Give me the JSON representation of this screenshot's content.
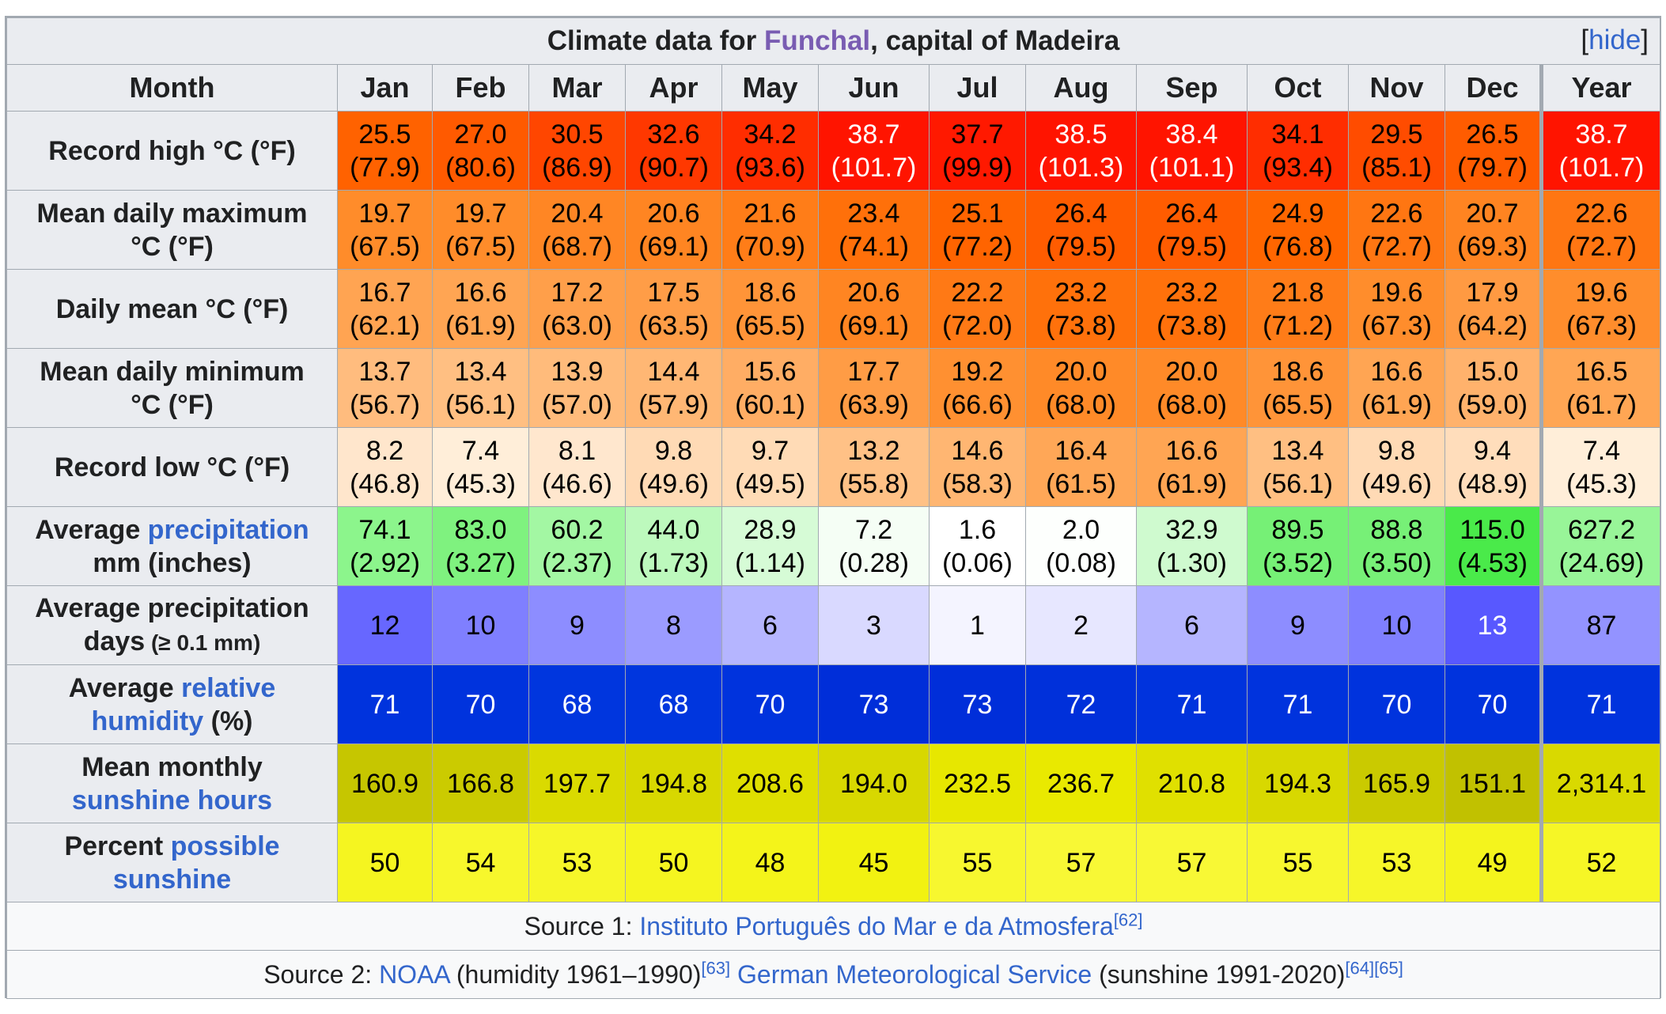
{
  "title": {
    "prefix": "Climate data for ",
    "place": "Funchal",
    "suffix": ", capital of Madeira",
    "hide": "[hide]"
  },
  "header": {
    "month_label": "Month",
    "months": [
      "Jan",
      "Feb",
      "Mar",
      "Apr",
      "May",
      "Jun",
      "Jul",
      "Aug",
      "Sep",
      "Oct",
      "Nov",
      "Dec",
      "Year"
    ]
  },
  "rows": [
    {
      "label_parts": [
        {
          "text": "Record high °C (°F)",
          "link": false
        }
      ],
      "cells": [
        {
          "l1": "25.5",
          "l2": "(77.9)",
          "bg": "#ff6200",
          "fg": "#000000"
        },
        {
          "l1": "27.0",
          "l2": "(80.6)",
          "bg": "#ff5a00",
          "fg": "#000000"
        },
        {
          "l1": "30.5",
          "l2": "(86.9)",
          "bg": "#ff4600",
          "fg": "#000000"
        },
        {
          "l1": "32.6",
          "l2": "(90.7)",
          "bg": "#ff3800",
          "fg": "#000000"
        },
        {
          "l1": "34.2",
          "l2": "(93.6)",
          "bg": "#ff2d00",
          "fg": "#000000"
        },
        {
          "l1": "38.7",
          "l2": "(101.7)",
          "bg": "#ff1400",
          "fg": "#ffffff"
        },
        {
          "l1": "37.7",
          "l2": "(99.9)",
          "bg": "#ff1900",
          "fg": "#000000"
        },
        {
          "l1": "38.5",
          "l2": "(101.3)",
          "bg": "#ff1400",
          "fg": "#ffffff"
        },
        {
          "l1": "38.4",
          "l2": "(101.1)",
          "bg": "#ff1400",
          "fg": "#ffffff"
        },
        {
          "l1": "34.1",
          "l2": "(93.4)",
          "bg": "#ff2d00",
          "fg": "#000000"
        },
        {
          "l1": "29.5",
          "l2": "(85.1)",
          "bg": "#ff4c00",
          "fg": "#000000"
        },
        {
          "l1": "26.5",
          "l2": "(79.7)",
          "bg": "#ff5c00",
          "fg": "#000000"
        },
        {
          "l1": "38.7",
          "l2": "(101.7)",
          "bg": "#ff1400",
          "fg": "#ffffff"
        }
      ]
    },
    {
      "label_parts": [
        {
          "text": "Mean daily maximum",
          "link": false
        },
        {
          "text": "°C (°F)",
          "link": false,
          "br": true
        }
      ],
      "cells": [
        {
          "l1": "19.7",
          "l2": "(67.5)",
          "bg": "#ff8c2a",
          "fg": "#000000"
        },
        {
          "l1": "19.7",
          "l2": "(67.5)",
          "bg": "#ff8c2a",
          "fg": "#000000"
        },
        {
          "l1": "20.4",
          "l2": "(68.7)",
          "bg": "#ff8624",
          "fg": "#000000"
        },
        {
          "l1": "20.6",
          "l2": "(69.1)",
          "bg": "#ff8522",
          "fg": "#000000"
        },
        {
          "l1": "21.6",
          "l2": "(70.9)",
          "bg": "#ff7d18",
          "fg": "#000000"
        },
        {
          "l1": "23.4",
          "l2": "(74.1)",
          "bg": "#ff700a",
          "fg": "#000000"
        },
        {
          "l1": "25.1",
          "l2": "(77.2)",
          "bg": "#ff6400",
          "fg": "#000000"
        },
        {
          "l1": "26.4",
          "l2": "(79.5)",
          "bg": "#ff5c00",
          "fg": "#000000"
        },
        {
          "l1": "26.4",
          "l2": "(79.5)",
          "bg": "#ff5c00",
          "fg": "#000000"
        },
        {
          "l1": "24.9",
          "l2": "(76.8)",
          "bg": "#ff6600",
          "fg": "#000000"
        },
        {
          "l1": "22.6",
          "l2": "(72.7)",
          "bg": "#ff7612",
          "fg": "#000000"
        },
        {
          "l1": "20.7",
          "l2": "(69.3)",
          "bg": "#ff8421",
          "fg": "#000000"
        },
        {
          "l1": "22.6",
          "l2": "(72.7)",
          "bg": "#ff7612",
          "fg": "#000000"
        }
      ]
    },
    {
      "label_parts": [
        {
          "text": "Daily mean °C (°F)",
          "link": false
        }
      ],
      "cells": [
        {
          "l1": "16.7",
          "l2": "(62.1)",
          "bg": "#ffa452",
          "fg": "#000000"
        },
        {
          "l1": "16.6",
          "l2": "(61.9)",
          "bg": "#ffa553",
          "fg": "#000000"
        },
        {
          "l1": "17.2",
          "l2": "(63.0)",
          "bg": "#ff9f4a",
          "fg": "#000000"
        },
        {
          "l1": "17.5",
          "l2": "(63.5)",
          "bg": "#ff9d47",
          "fg": "#000000"
        },
        {
          "l1": "18.6",
          "l2": "(65.5)",
          "bg": "#ff9438",
          "fg": "#000000"
        },
        {
          "l1": "20.6",
          "l2": "(69.1)",
          "bg": "#ff8522",
          "fg": "#000000"
        },
        {
          "l1": "22.2",
          "l2": "(72.0)",
          "bg": "#ff7915",
          "fg": "#000000"
        },
        {
          "l1": "23.2",
          "l2": "(73.8)",
          "bg": "#ff710b",
          "fg": "#000000"
        },
        {
          "l1": "23.2",
          "l2": "(73.8)",
          "bg": "#ff710b",
          "fg": "#000000"
        },
        {
          "l1": "21.8",
          "l2": "(71.2)",
          "bg": "#ff7c18",
          "fg": "#000000"
        },
        {
          "l1": "19.6",
          "l2": "(67.3)",
          "bg": "#ff8d2c",
          "fg": "#000000"
        },
        {
          "l1": "17.9",
          "l2": "(64.2)",
          "bg": "#ff9a42",
          "fg": "#000000"
        },
        {
          "l1": "19.6",
          "l2": "(67.3)",
          "bg": "#ff8d2c",
          "fg": "#000000"
        }
      ]
    },
    {
      "label_parts": [
        {
          "text": "Mean daily minimum",
          "link": false
        },
        {
          "text": "°C (°F)",
          "link": false,
          "br": true
        }
      ],
      "cells": [
        {
          "l1": "13.7",
          "l2": "(56.7)",
          "bg": "#ffbc7e",
          "fg": "#000000"
        },
        {
          "l1": "13.4",
          "l2": "(56.1)",
          "bg": "#ffbf82",
          "fg": "#000000"
        },
        {
          "l1": "13.9",
          "l2": "(57.0)",
          "bg": "#ffbb7b",
          "fg": "#000000"
        },
        {
          "l1": "14.4",
          "l2": "(57.9)",
          "bg": "#ffb774",
          "fg": "#000000"
        },
        {
          "l1": "15.6",
          "l2": "(60.1)",
          "bg": "#ffad64",
          "fg": "#000000"
        },
        {
          "l1": "17.7",
          "l2": "(63.9)",
          "bg": "#ff9c45",
          "fg": "#000000"
        },
        {
          "l1": "19.2",
          "l2": "(66.6)",
          "bg": "#ff9031",
          "fg": "#000000"
        },
        {
          "l1": "20.0",
          "l2": "(68.0)",
          "bg": "#ff8a28",
          "fg": "#000000"
        },
        {
          "l1": "20.0",
          "l2": "(68.0)",
          "bg": "#ff8a28",
          "fg": "#000000"
        },
        {
          "l1": "18.6",
          "l2": "(65.5)",
          "bg": "#ff9438",
          "fg": "#000000"
        },
        {
          "l1": "16.6",
          "l2": "(61.9)",
          "bg": "#ffa553",
          "fg": "#000000"
        },
        {
          "l1": "15.0",
          "l2": "(59.0)",
          "bg": "#ffb26c",
          "fg": "#000000"
        },
        {
          "l1": "16.5",
          "l2": "(61.7)",
          "bg": "#ffa654",
          "fg": "#000000"
        }
      ]
    },
    {
      "label_parts": [
        {
          "text": "Record low °C (°F)",
          "link": false
        }
      ],
      "cells": [
        {
          "l1": "8.2",
          "l2": "(46.8)",
          "bg": "#ffe6cc",
          "fg": "#000000"
        },
        {
          "l1": "7.4",
          "l2": "(45.3)",
          "bg": "#ffeed9",
          "fg": "#000000"
        },
        {
          "l1": "8.1",
          "l2": "(46.6)",
          "bg": "#ffe7ce",
          "fg": "#000000"
        },
        {
          "l1": "9.8",
          "l2": "(49.6)",
          "bg": "#ffdab5",
          "fg": "#000000"
        },
        {
          "l1": "9.7",
          "l2": "(49.5)",
          "bg": "#ffdbb6",
          "fg": "#000000"
        },
        {
          "l1": "13.2",
          "l2": "(55.8)",
          "bg": "#ffc186",
          "fg": "#000000"
        },
        {
          "l1": "14.6",
          "l2": "(58.3)",
          "bg": "#ffb672",
          "fg": "#000000"
        },
        {
          "l1": "16.4",
          "l2": "(61.5)",
          "bg": "#ffa757",
          "fg": "#000000"
        },
        {
          "l1": "16.6",
          "l2": "(61.9)",
          "bg": "#ffa553",
          "fg": "#000000"
        },
        {
          "l1": "13.4",
          "l2": "(56.1)",
          "bg": "#ffbf82",
          "fg": "#000000"
        },
        {
          "l1": "9.8",
          "l2": "(49.6)",
          "bg": "#ffdab5",
          "fg": "#000000"
        },
        {
          "l1": "9.4",
          "l2": "(48.9)",
          "bg": "#ffddbb",
          "fg": "#000000"
        },
        {
          "l1": "7.4",
          "l2": "(45.3)",
          "bg": "#ffeed9",
          "fg": "#000000"
        }
      ]
    },
    {
      "label_parts": [
        {
          "text": "Average ",
          "link": false
        },
        {
          "text": "precipitation",
          "link": true
        },
        {
          "text": "mm (inches)",
          "link": false,
          "br": true
        }
      ],
      "cells": [
        {
          "l1": "74.1",
          "l2": "(2.92)",
          "bg": "#8cf58c",
          "fg": "#000000"
        },
        {
          "l1": "83.0",
          "l2": "(3.27)",
          "bg": "#7ff27f",
          "fg": "#000000"
        },
        {
          "l1": "60.2",
          "l2": "(2.37)",
          "bg": "#a3f7a3",
          "fg": "#000000"
        },
        {
          "l1": "44.0",
          "l2": "(1.73)",
          "bg": "#bdf9bd",
          "fg": "#000000"
        },
        {
          "l1": "28.9",
          "l2": "(1.14)",
          "bg": "#d6fbd6",
          "fg": "#000000"
        },
        {
          "l1": "7.2",
          "l2": "(0.28)",
          "bg": "#f5fef5",
          "fg": "#000000"
        },
        {
          "l1": "1.6",
          "l2": "(0.06)",
          "bg": "#ffffff",
          "fg": "#000000"
        },
        {
          "l1": "2.0",
          "l2": "(0.08)",
          "bg": "#fdfffd",
          "fg": "#000000"
        },
        {
          "l1": "32.9",
          "l2": "(1.30)",
          "bg": "#cffacf",
          "fg": "#000000"
        },
        {
          "l1": "89.5",
          "l2": "(3.52)",
          "bg": "#76f076",
          "fg": "#000000"
        },
        {
          "l1": "88.8",
          "l2": "(3.50)",
          "bg": "#77f077",
          "fg": "#000000"
        },
        {
          "l1": "115.0",
          "l2": "(4.53)",
          "bg": "#4aea4a",
          "fg": "#000000"
        },
        {
          "l1": "627.2",
          "l2": "(24.69)",
          "bg": "#98f598",
          "fg": "#000000"
        }
      ]
    },
    {
      "label_parts": [
        {
          "text": "Average precipitation",
          "link": false
        },
        {
          "text": "days",
          "link": false,
          "br": true
        },
        {
          "text": " (≥ 0.1 mm)",
          "link": false,
          "small": true
        }
      ],
      "cells": [
        {
          "l1": "12",
          "l2": "",
          "bg": "#6767ff",
          "fg": "#000000"
        },
        {
          "l1": "10",
          "l2": "",
          "bg": "#7f7fff",
          "fg": "#000000"
        },
        {
          "l1": "9",
          "l2": "",
          "bg": "#8d8dff",
          "fg": "#000000"
        },
        {
          "l1": "8",
          "l2": "",
          "bg": "#9b9bff",
          "fg": "#000000"
        },
        {
          "l1": "6",
          "l2": "",
          "bg": "#b5b5ff",
          "fg": "#000000"
        },
        {
          "l1": "3",
          "l2": "",
          "bg": "#d9d9ff",
          "fg": "#000000"
        },
        {
          "l1": "1",
          "l2": "",
          "bg": "#f4f4ff",
          "fg": "#000000"
        },
        {
          "l1": "2",
          "l2": "",
          "bg": "#e7e7ff",
          "fg": "#000000"
        },
        {
          "l1": "6",
          "l2": "",
          "bg": "#b5b5ff",
          "fg": "#000000"
        },
        {
          "l1": "9",
          "l2": "",
          "bg": "#8d8dff",
          "fg": "#000000"
        },
        {
          "l1": "10",
          "l2": "",
          "bg": "#7f7fff",
          "fg": "#000000"
        },
        {
          "l1": "13",
          "l2": "",
          "bg": "#5858ff",
          "fg": "#ffffff"
        },
        {
          "l1": "87",
          "l2": "",
          "bg": "#9393ff",
          "fg": "#000000"
        }
      ]
    },
    {
      "label_parts": [
        {
          "text": "Average ",
          "link": false
        },
        {
          "text": "relative",
          "link": true
        },
        {
          "text": "humidity",
          "link": true,
          "br": true
        },
        {
          "text": " (%)",
          "link": false
        }
      ],
      "cells": [
        {
          "l1": "71",
          "l2": "",
          "bg": "#0033dd",
          "fg": "#ffffff"
        },
        {
          "l1": "70",
          "l2": "",
          "bg": "#0033dd",
          "fg": "#ffffff"
        },
        {
          "l1": "68",
          "l2": "",
          "bg": "#0036de",
          "fg": "#ffffff"
        },
        {
          "l1": "68",
          "l2": "",
          "bg": "#0036de",
          "fg": "#ffffff"
        },
        {
          "l1": "70",
          "l2": "",
          "bg": "#0033dd",
          "fg": "#ffffff"
        },
        {
          "l1": "73",
          "l2": "",
          "bg": "#002ed9",
          "fg": "#ffffff"
        },
        {
          "l1": "73",
          "l2": "",
          "bg": "#002ed9",
          "fg": "#ffffff"
        },
        {
          "l1": "72",
          "l2": "",
          "bg": "#0030da",
          "fg": "#ffffff"
        },
        {
          "l1": "71",
          "l2": "",
          "bg": "#0033dd",
          "fg": "#ffffff"
        },
        {
          "l1": "71",
          "l2": "",
          "bg": "#0033dd",
          "fg": "#ffffff"
        },
        {
          "l1": "70",
          "l2": "",
          "bg": "#0033dd",
          "fg": "#ffffff"
        },
        {
          "l1": "70",
          "l2": "",
          "bg": "#0033dd",
          "fg": "#ffffff"
        },
        {
          "l1": "71",
          "l2": "",
          "bg": "#0033dd",
          "fg": "#ffffff"
        }
      ]
    },
    {
      "label_parts": [
        {
          "text": "Mean monthly",
          "link": false
        },
        {
          "text": "sunshine hours",
          "link": true,
          "br": true
        }
      ],
      "cells": [
        {
          "l1": "160.9",
          "l2": "",
          "bg": "#c6c600",
          "fg": "#000000"
        },
        {
          "l1": "166.8",
          "l2": "",
          "bg": "#cbcb00",
          "fg": "#000000"
        },
        {
          "l1": "197.7",
          "l2": "",
          "bg": "#dada00",
          "fg": "#000000"
        },
        {
          "l1": "194.8",
          "l2": "",
          "bg": "#d8d800",
          "fg": "#000000"
        },
        {
          "l1": "208.6",
          "l2": "",
          "bg": "#dfdf00",
          "fg": "#000000"
        },
        {
          "l1": "194.0",
          "l2": "",
          "bg": "#d8d800",
          "fg": "#000000"
        },
        {
          "l1": "232.5",
          "l2": "",
          "bg": "#e7e700",
          "fg": "#000000"
        },
        {
          "l1": "236.7",
          "l2": "",
          "bg": "#e9e900",
          "fg": "#000000"
        },
        {
          "l1": "210.8",
          "l2": "",
          "bg": "#e0e000",
          "fg": "#000000"
        },
        {
          "l1": "194.3",
          "l2": "",
          "bg": "#d8d800",
          "fg": "#000000"
        },
        {
          "l1": "165.9",
          "l2": "",
          "bg": "#caca00",
          "fg": "#000000"
        },
        {
          "l1": "151.1",
          "l2": "",
          "bg": "#c1c100",
          "fg": "#000000"
        },
        {
          "l1": "2,314.1",
          "l2": "",
          "bg": "#d9d900",
          "fg": "#000000"
        }
      ]
    },
    {
      "label_parts": [
        {
          "text": "Percent ",
          "link": false
        },
        {
          "text": "possible",
          "link": true
        },
        {
          "text": "sunshine",
          "link": true,
          "br": true
        }
      ],
      "cells": [
        {
          "l1": "50",
          "l2": "",
          "bg": "#f5f520",
          "fg": "#000000"
        },
        {
          "l1": "54",
          "l2": "",
          "bg": "#f7f72c",
          "fg": "#000000"
        },
        {
          "l1": "53",
          "l2": "",
          "bg": "#f6f629",
          "fg": "#000000"
        },
        {
          "l1": "50",
          "l2": "",
          "bg": "#f5f520",
          "fg": "#000000"
        },
        {
          "l1": "48",
          "l2": "",
          "bg": "#f4f41a",
          "fg": "#000000"
        },
        {
          "l1": "45",
          "l2": "",
          "bg": "#f2f211",
          "fg": "#000000"
        },
        {
          "l1": "55",
          "l2": "",
          "bg": "#f7f72f",
          "fg": "#000000"
        },
        {
          "l1": "57",
          "l2": "",
          "bg": "#f8f835",
          "fg": "#000000"
        },
        {
          "l1": "57",
          "l2": "",
          "bg": "#f8f835",
          "fg": "#000000"
        },
        {
          "l1": "55",
          "l2": "",
          "bg": "#f7f72f",
          "fg": "#000000"
        },
        {
          "l1": "53",
          "l2": "",
          "bg": "#f6f629",
          "fg": "#000000"
        },
        {
          "l1": "49",
          "l2": "",
          "bg": "#f4f41d",
          "fg": "#000000"
        },
        {
          "l1": "52",
          "l2": "",
          "bg": "#f6f626",
          "fg": "#000000"
        }
      ]
    }
  ],
  "source1": {
    "prefix": "Source 1: ",
    "link": "Instituto Português do Mar e da Atmosfera",
    "ref": "[62]"
  },
  "source2": {
    "prefix": "Source 2: ",
    "link1": "NOAA",
    "text1": " (humidity 1961–1990)",
    "ref1": "[63]",
    "link2": "German Meteorological Service",
    "text2": " (sunshine 1991-2020)",
    "ref2a": "[64]",
    "ref2b": "[65]"
  }
}
